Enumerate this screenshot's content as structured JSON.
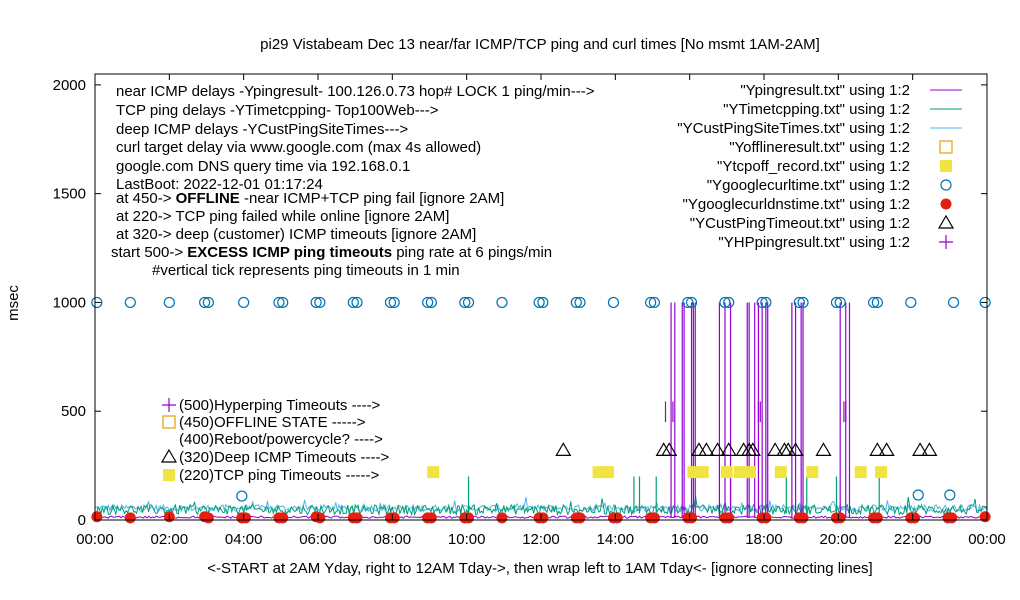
{
  "chart_data": {
    "type": "line",
    "title": "pi29 Vistabeam Dec 13  near/far ICMP/TCP ping and curl times [No msmt 1AM-2AM]",
    "ylabel": "msec",
    "xlabel": "<-START at 2AM Yday, right to 12AM Tday->, then wrap left to 1AM Tday<- [ignore connecting lines]",
    "ylim": [
      0,
      2050
    ],
    "xlim": [
      0,
      24
    ],
    "y_ticks": [
      "0",
      "500",
      "1000",
      "1500",
      "2000"
    ],
    "x_ticks": [
      "00:00",
      "02:00",
      "04:00",
      "06:00",
      "08:00",
      "10:00",
      "12:00",
      "14:00",
      "16:00",
      "18:00",
      "20:00",
      "22:00",
      "00:00"
    ],
    "grid": false,
    "legend_position": "top-right",
    "notes": [
      "near ICMP delays -Ypingresult- 100.126.0.73 hop# LOCK 1 ping/min--->",
      "TCP ping delays -YTimetcpping- Top100Web--->",
      "deep ICMP delays -YCustPingSiteTimes--->",
      "curl target delay via www.google.com (max 4s allowed)",
      "google.com DNS query time via 192.168.0.1",
      "LastBoot: 2022-12-01 01:17:24"
    ],
    "note_offline": {
      "prefix": "at 450-> ",
      "bold": "OFFLINE",
      "rest": " -near ICMP+TCP ping fail [ignore 2AM]"
    },
    "note_tcpfail": "at 220-> TCP ping failed while online [ignore 2AM]",
    "note_deep": "at 320-> deep (customer) ICMP timeouts [ignore 2AM]",
    "note_excess": {
      "prefix": "start 500-> ",
      "bold": "EXCESS ICMP ping timeouts",
      "rest": " ping rate at 6 pings/min"
    },
    "note_tick": "#vertical tick represents ping timeouts in 1 min",
    "inner_legend": [
      "(500)Hyperping Timeouts ---->",
      "(450)OFFLINE STATE ----->",
      "(400)Reboot/powercycle? ---->",
      "(320)Deep ICMP Timeouts ---->",
      "(220)TCP ping Timeouts ----->"
    ],
    "series": [
      {
        "name": "\"Ypingresult.txt\" using 1:2",
        "color": "#9400d3",
        "style": "line",
        "spikes_x": [
          15.5,
          15.6,
          15.8,
          15.85,
          16.05,
          16.1,
          16.15,
          16.8,
          16.95,
          17.1,
          17.55,
          17.6,
          17.75,
          17.85,
          17.95,
          18.05,
          18.1,
          18.75,
          18.85,
          19.0,
          19.05,
          20.05,
          20.2,
          20.3
        ],
        "spike_y": 1000
      },
      {
        "name": "\"YTimetcpping.txt\" using 1:2",
        "color": "#009e73",
        "style": "line",
        "spikes_x": [
          10.05,
          14.5,
          14.65,
          15.1,
          17.1,
          18.6,
          19.15,
          19.95,
          21.1
        ],
        "spike_y": 200
      },
      {
        "name": "\"YCustPingSiteTimes.txt\" using 1:2",
        "color": "#56b4e9",
        "style": "line"
      },
      {
        "name": "\"Yofflineresult.txt\" using 1:2",
        "color": "#e69f00",
        "style": "open-square",
        "points": []
      },
      {
        "name": "\"Ytcpoff_record.txt\" using 1:2",
        "color": "#f0e442",
        "style": "filled-square",
        "points": [
          [
            9.1,
            220
          ],
          [
            13.55,
            220
          ],
          [
            13.8,
            220
          ],
          [
            16.1,
            220
          ],
          [
            16.35,
            220
          ],
          [
            17.0,
            220
          ],
          [
            17.35,
            220
          ],
          [
            17.6,
            220
          ],
          [
            18.45,
            220
          ],
          [
            19.3,
            220
          ],
          [
            20.6,
            220
          ],
          [
            21.15,
            220
          ]
        ]
      },
      {
        "name": "\"Ygooglecurltime.txt\" using 1:2",
        "color": "#0072b2",
        "style": "open-circle",
        "points": [
          [
            0.05,
            1000
          ],
          [
            0.95,
            1000
          ],
          [
            2.0,
            1000
          ],
          [
            2.95,
            1000
          ],
          [
            3.05,
            1000
          ],
          [
            4.0,
            1000
          ],
          [
            4.95,
            1000
          ],
          [
            5.05,
            1000
          ],
          [
            5.95,
            1000
          ],
          [
            6.05,
            1000
          ],
          [
            6.95,
            1000
          ],
          [
            7.05,
            1000
          ],
          [
            7.95,
            1000
          ],
          [
            8.05,
            1000
          ],
          [
            8.95,
            1000
          ],
          [
            9.05,
            1000
          ],
          [
            9.95,
            1000
          ],
          [
            10.05,
            1000
          ],
          [
            10.95,
            1000
          ],
          [
            11.95,
            1000
          ],
          [
            12.05,
            1000
          ],
          [
            12.95,
            1000
          ],
          [
            13.05,
            1000
          ],
          [
            13.95,
            1000
          ],
          [
            14.95,
            1000
          ],
          [
            15.05,
            1000
          ],
          [
            15.95,
            1000
          ],
          [
            16.05,
            1000
          ],
          [
            16.95,
            1000
          ],
          [
            17.05,
            1000
          ],
          [
            17.95,
            1000
          ],
          [
            18.05,
            1000
          ],
          [
            18.95,
            1000
          ],
          [
            19.05,
            1000
          ],
          [
            19.95,
            1000
          ],
          [
            20.05,
            1000
          ],
          [
            20.95,
            1000
          ],
          [
            21.05,
            1000
          ],
          [
            21.95,
            1000
          ],
          [
            23.1,
            1000
          ],
          [
            23.95,
            1000
          ],
          [
            3.95,
            110
          ],
          [
            22.15,
            115
          ],
          [
            23.0,
            115
          ]
        ]
      },
      {
        "name": "\"Ygooglecurldnstime.txt\" using 1:2",
        "color": "#e51e10",
        "style": "filled-circle",
        "points": [
          [
            0.05,
            15
          ],
          [
            0.95,
            10
          ],
          [
            2.0,
            15
          ],
          [
            2.95,
            15
          ],
          [
            3.05,
            10
          ],
          [
            3.95,
            10
          ],
          [
            4.05,
            10
          ],
          [
            4.95,
            10
          ],
          [
            5.05,
            10
          ],
          [
            5.95,
            15
          ],
          [
            6.05,
            10
          ],
          [
            6.95,
            10
          ],
          [
            7.05,
            10
          ],
          [
            7.95,
            10
          ],
          [
            8.05,
            10
          ],
          [
            8.95,
            10
          ],
          [
            9.05,
            10
          ],
          [
            9.95,
            10
          ],
          [
            10.05,
            10
          ],
          [
            10.95,
            10
          ],
          [
            11.95,
            10
          ],
          [
            12.05,
            10
          ],
          [
            12.95,
            10
          ],
          [
            13.05,
            10
          ],
          [
            13.95,
            10
          ],
          [
            14.05,
            10
          ],
          [
            14.95,
            10
          ],
          [
            15.05,
            10
          ],
          [
            15.95,
            10
          ],
          [
            16.05,
            10
          ],
          [
            16.95,
            10
          ],
          [
            17.05,
            10
          ],
          [
            17.95,
            10
          ],
          [
            18.05,
            10
          ],
          [
            18.95,
            10
          ],
          [
            19.05,
            10
          ],
          [
            19.95,
            10
          ],
          [
            20.05,
            10
          ],
          [
            20.95,
            10
          ],
          [
            21.05,
            10
          ],
          [
            21.95,
            10
          ],
          [
            22.05,
            10
          ],
          [
            22.95,
            10
          ],
          [
            23.05,
            10
          ],
          [
            23.95,
            15
          ]
        ]
      },
      {
        "name": "\"YCustPingTimeout.txt\" using 1:2",
        "color": "#000000",
        "style": "open-triangle",
        "points": [
          [
            12.6,
            320
          ],
          [
            15.3,
            320
          ],
          [
            15.45,
            320
          ],
          [
            16.25,
            320
          ],
          [
            16.45,
            320
          ],
          [
            16.75,
            320
          ],
          [
            17.05,
            320
          ],
          [
            17.45,
            320
          ],
          [
            17.6,
            320
          ],
          [
            17.7,
            320
          ],
          [
            18.3,
            320
          ],
          [
            18.55,
            320
          ],
          [
            18.65,
            320
          ],
          [
            18.85,
            320
          ],
          [
            19.6,
            320
          ],
          [
            21.05,
            320
          ],
          [
            21.3,
            320
          ],
          [
            22.2,
            320
          ],
          [
            22.45,
            320
          ]
        ]
      },
      {
        "name": "\"YHPpingresult.txt\" using 1:2",
        "color": "#9400d3",
        "style": "plus",
        "points": []
      }
    ]
  }
}
